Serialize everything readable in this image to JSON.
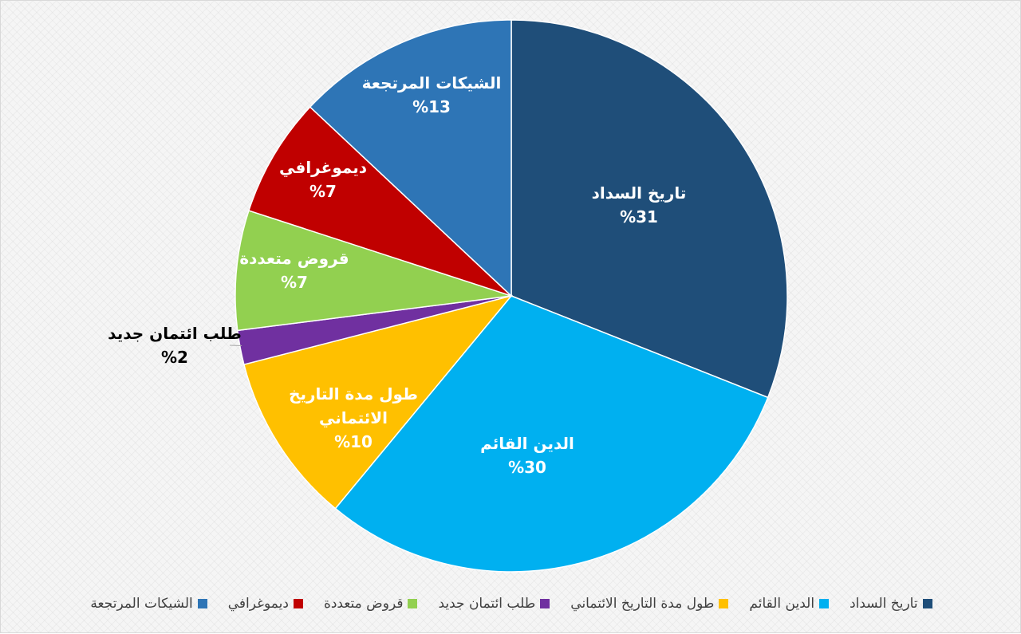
{
  "chart_data": {
    "type": "pie",
    "title": "",
    "slices": [
      {
        "name": "تاريخ السداد",
        "value": 31,
        "label": "%31",
        "color": "#1F4E79",
        "label_color": "#ffffff"
      },
      {
        "name": "الدين القائم",
        "value": 30,
        "label": "%30",
        "color": "#00B0F0",
        "label_color": "#ffffff"
      },
      {
        "name": "طول مدة التاريخ الائتماني",
        "value": 10,
        "label": "%10",
        "color": "#FFC000",
        "label_color": "#ffffff"
      },
      {
        "name": "طلب ائتمان جديد",
        "value": 2,
        "label": "%2",
        "color": "#7030A0",
        "label_color": "#000000"
      },
      {
        "name": "قروض متعددة",
        "value": 7,
        "label": "%7",
        "color": "#92D050",
        "label_color": "#ffffff"
      },
      {
        "name": "ديموغرافي",
        "value": 7,
        "label": "%7",
        "color": "#C00000",
        "label_color": "#ffffff"
      },
      {
        "name": "الشيكات المرتجعة",
        "value": 13,
        "label": "%13",
        "color": "#2E75B6",
        "label_color": "#ffffff"
      }
    ],
    "legend_position": "bottom"
  }
}
